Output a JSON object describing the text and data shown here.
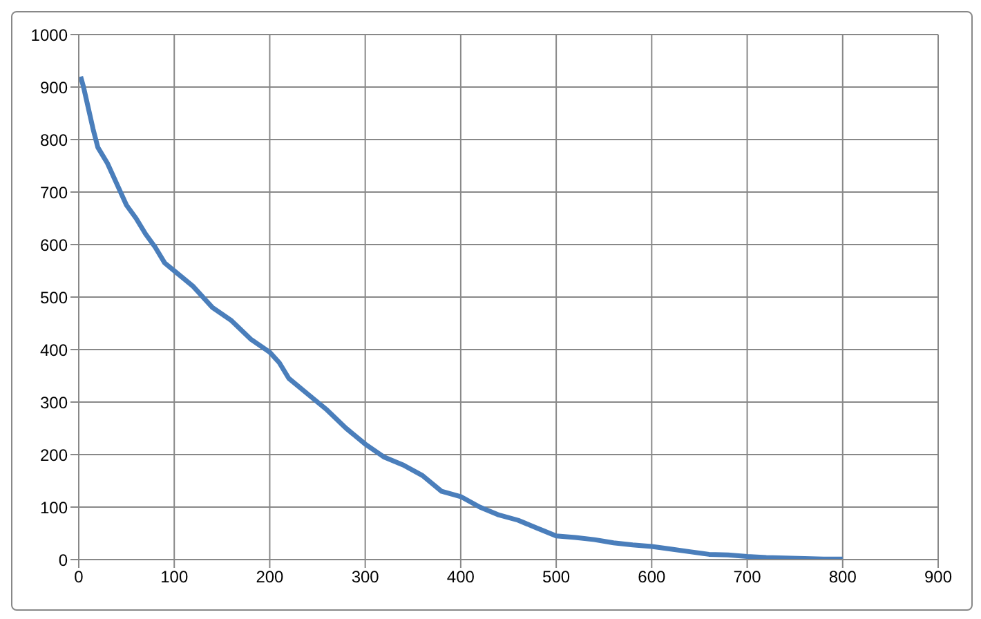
{
  "chart_data": {
    "type": "line",
    "x": [
      2,
      5,
      10,
      15,
      20,
      30,
      40,
      50,
      60,
      70,
      80,
      90,
      100,
      120,
      140,
      160,
      180,
      200,
      210,
      220,
      240,
      260,
      280,
      300,
      320,
      340,
      360,
      380,
      400,
      420,
      440,
      460,
      480,
      500,
      520,
      540,
      560,
      580,
      600,
      620,
      640,
      660,
      680,
      700,
      720,
      740,
      760,
      780,
      800
    ],
    "series": [
      {
        "color": "#4a7ebb",
        "values": [
          920,
          900,
          860,
          820,
          785,
          755,
          715,
          675,
          650,
          620,
          595,
          565,
          550,
          520,
          480,
          455,
          420,
          395,
          375,
          345,
          315,
          285,
          250,
          220,
          195,
          180,
          160,
          130,
          120,
          100,
          85,
          75,
          60,
          45,
          42,
          38,
          32,
          28,
          25,
          20,
          15,
          10,
          9,
          6,
          4,
          3,
          2,
          1,
          1
        ]
      }
    ],
    "xlim": [
      0,
      900
    ],
    "xticks": [
      0,
      100,
      200,
      300,
      400,
      500,
      600,
      700,
      800,
      900
    ],
    "ylim": [
      0,
      1000
    ],
    "yticks": [
      0,
      100,
      200,
      300,
      400,
      500,
      600,
      700,
      800,
      900,
      1000
    ],
    "grid": true,
    "legend": false,
    "marker": "none",
    "line_style": "solid"
  }
}
